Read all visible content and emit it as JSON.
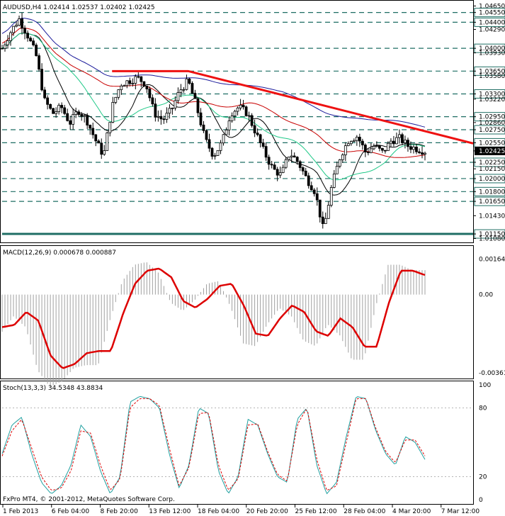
{
  "window": {
    "symbol_header": "AUDUSD,H4  1.02414 1.02537 1.02402 1.02425",
    "macd_header": "MACD(12,26,9) 0.000678 0.000887",
    "stoch_header": "Stoch(13,3,3) 34.5348 43.8834",
    "copyright": "FxPro MT4, © 2001-2012, MetaQuotes Software Corp."
  },
  "colors": {
    "candle": "#000000",
    "ma_fast": "#000000",
    "ma_green": "#1ec887",
    "ma_red": "#c80000",
    "ma_blue": "#1a1a9a",
    "trendline": "#ee1111",
    "level_line": "#1f6e64",
    "macd_signal": "#dd0000",
    "macd_hist": "#a0a0a0",
    "stoch_main": "#20a0a0",
    "stoch_signal": "#dd0000",
    "current_price_bg": "#000000"
  },
  "chart_data": [
    {
      "type": "candlestick",
      "title": "AUDUSD,H4",
      "ylim": [
        1.0102,
        1.0472
      ],
      "y_ticks": [
        "1.04650",
        "1.04550",
        "1.04400",
        "1.04290",
        "1.04000",
        "1.03930",
        "1.03650",
        "1.03580",
        "1.03300",
        "1.03220",
        "1.02950",
        "1.02860",
        "1.02750",
        "1.02550",
        "1.02425",
        "1.02250",
        "1.02150",
        "1.02000",
        "1.01800",
        "1.01650",
        "1.01430",
        "1.01150",
        "1.01080"
      ],
      "levels": [
        1.0455,
        1.044,
        1.04,
        1.0365,
        1.033,
        1.0295,
        1.0275,
        1.0255,
        1.0225,
        1.02,
        1.018,
        1.0165,
        1.0115
      ],
      "highlighted_levels": [
        "1.04550",
        "1.04400",
        "1.04000",
        "1.03650",
        "1.03300",
        "1.02950",
        "1.02750",
        "1.02550",
        "1.02250",
        "1.02000",
        "1.01800",
        "1.01650",
        "1.01150"
      ],
      "current_price": "1.02425",
      "trendline": {
        "from": {
          "bar": 0.26,
          "price": 1.0365
        },
        "via": {
          "bar": 0.44,
          "price": 1.0365
        },
        "to": {
          "bar": 1.0,
          "price": 1.0254
        }
      },
      "x_labels": [
        "1 Feb 2013",
        "6 Feb 04:00",
        "8 Feb 20:00",
        "13 Feb 12:00",
        "18 Feb 04:00",
        "20 Feb 20:00",
        "25 Feb 12:00",
        "28 Feb 04:00",
        "4 Mar 20:00",
        "7 Mar 12:00"
      ],
      "close_path": [
        [
          0.0,
          1.04
        ],
        [
          0.02,
          1.0425
        ],
        [
          0.04,
          1.0445
        ],
        [
          0.06,
          1.042
        ],
        [
          0.08,
          1.039
        ],
        [
          0.1,
          1.032
        ],
        [
          0.12,
          1.03
        ],
        [
          0.14,
          1.031
        ],
        [
          0.16,
          1.0285
        ],
        [
          0.18,
          1.0305
        ],
        [
          0.2,
          1.029
        ],
        [
          0.22,
          1.026
        ],
        [
          0.24,
          1.0235
        ],
        [
          0.26,
          1.031
        ],
        [
          0.28,
          1.0345
        ],
        [
          0.3,
          1.035
        ],
        [
          0.32,
          1.0355
        ],
        [
          0.34,
          1.0345
        ],
        [
          0.36,
          1.03
        ],
        [
          0.38,
          1.029
        ],
        [
          0.4,
          1.0305
        ],
        [
          0.42,
          1.0335
        ],
        [
          0.44,
          1.035
        ],
        [
          0.46,
          1.031
        ],
        [
          0.48,
          1.026
        ],
        [
          0.5,
          1.0235
        ],
        [
          0.52,
          1.0255
        ],
        [
          0.54,
          1.03
        ],
        [
          0.56,
          1.031
        ],
        [
          0.58,
          1.03
        ],
        [
          0.6,
          1.027
        ],
        [
          0.62,
          1.024
        ],
        [
          0.64,
          1.0215
        ],
        [
          0.66,
          1.0205
        ],
        [
          0.68,
          1.024
        ],
        [
          0.7,
          1.0225
        ],
        [
          0.72,
          1.02
        ],
        [
          0.74,
          1.018
        ],
        [
          0.76,
          1.012
        ],
        [
          0.78,
          1.019
        ],
        [
          0.8,
          1.0235
        ],
        [
          0.82,
          1.026
        ],
        [
          0.84,
          1.0265
        ],
        [
          0.86,
          1.024
        ],
        [
          0.88,
          1.025
        ],
        [
          0.9,
          1.024
        ],
        [
          0.92,
          1.0258
        ],
        [
          0.94,
          1.0262
        ],
        [
          0.96,
          1.025
        ],
        [
          1.0,
          1.0242
        ]
      ]
    },
    {
      "type": "line",
      "title": "MACD(12,26,9)",
      "ylim": [
        -0.0038,
        0.00175
      ],
      "y_ticks": [
        "0.001643",
        "0.00",
        "-0.00361"
      ],
      "series": [
        {
          "name": "signal",
          "values": [
            -0.0015,
            -0.0014,
            -0.0008,
            -0.0012,
            -0.0028,
            -0.0034,
            -0.0032,
            -0.0027,
            -0.0026,
            -0.0026,
            -0.0009,
            0.0005,
            0.0011,
            0.0012,
            0.0008,
            -0.0003,
            -0.0006,
            -0.0002,
            0.0004,
            0.0005,
            -0.0005,
            -0.0018,
            -0.0019,
            -0.0011,
            -0.0005,
            -0.0008,
            -0.0017,
            -0.0019,
            -0.0011,
            -0.0015,
            -0.0024,
            -0.0024,
            -0.0004,
            0.0011,
            0.0011,
            0.0009
          ]
        }
      ]
    },
    {
      "type": "line",
      "title": "Stoch(13,3,3)",
      "ylim": [
        0,
        100
      ],
      "y_ticks": [
        "100",
        "80",
        "20",
        "0"
      ],
      "series": [
        {
          "name": "main",
          "values": [
            40,
            65,
            72,
            40,
            15,
            5,
            12,
            30,
            65,
            55,
            25,
            5,
            20,
            85,
            90,
            88,
            80,
            40,
            10,
            30,
            80,
            75,
            25,
            5,
            20,
            70,
            65,
            40,
            20,
            15,
            70,
            80,
            30,
            5,
            15,
            55,
            90,
            88,
            60,
            40,
            30,
            55,
            50,
            35
          ]
        },
        {
          "name": "signal",
          "values": [
            38,
            60,
            70,
            45,
            20,
            8,
            10,
            25,
            60,
            58,
            30,
            8,
            18,
            80,
            88,
            88,
            82,
            45,
            12,
            28,
            75,
            76,
            30,
            8,
            18,
            65,
            66,
            42,
            22,
            16,
            65,
            80,
            35,
            8,
            12,
            50,
            88,
            88,
            62,
            42,
            32,
            52,
            52,
            38
          ]
        }
      ]
    }
  ]
}
